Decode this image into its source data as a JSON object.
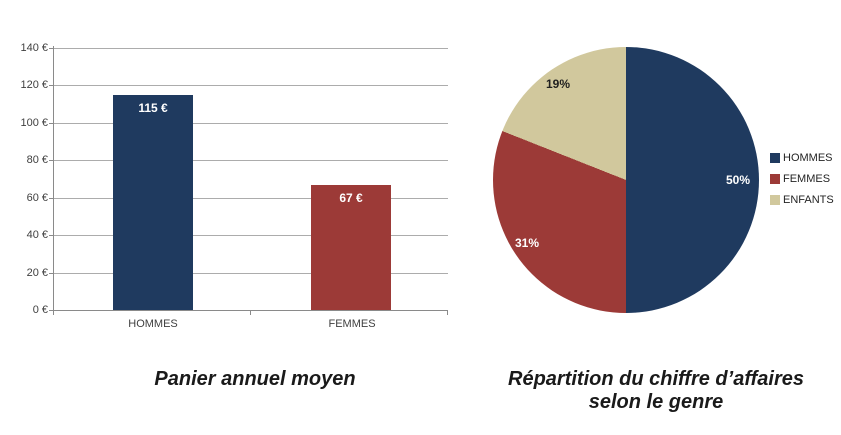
{
  "chart_data": [
    {
      "type": "bar",
      "title": "Panier annuel moyen",
      "categories": [
        "HOMMES",
        "FEMMES"
      ],
      "values": [
        115,
        67
      ],
      "value_labels": [
        "115 €",
        "67 €"
      ],
      "bar_colors": [
        "#1f3a5f",
        "#9c3a37"
      ],
      "xlabel": "",
      "ylabel": "",
      "ylim": [
        0,
        140
      ],
      "ytick_step": 20,
      "ytick_labels_top_to_bottom": [
        "140 €",
        "120 €",
        "100 €",
        "80 €",
        "60 €",
        "40 €",
        "20 €",
        "0 €"
      ],
      "grid": true,
      "value_label_color": "#ffffff"
    },
    {
      "type": "pie",
      "title": "Répartition du chiffre d’affaires selon le genre",
      "labels": [
        "HOMMES",
        "FEMMES",
        "ENFANTS"
      ],
      "values": [
        50,
        31,
        19
      ],
      "slice_labels": [
        "50%",
        "31%",
        "19%"
      ],
      "colors": [
        "#1f3a5f",
        "#9c3a37",
        "#d1c89d"
      ],
      "start_angle_deg": 0,
      "direction": "clockwise",
      "legend_position": "right"
    }
  ],
  "axis_colors": {
    "gridline": "#acacac",
    "axis_line": "#8a8a8a",
    "tick_text": "#3f3f3f"
  }
}
